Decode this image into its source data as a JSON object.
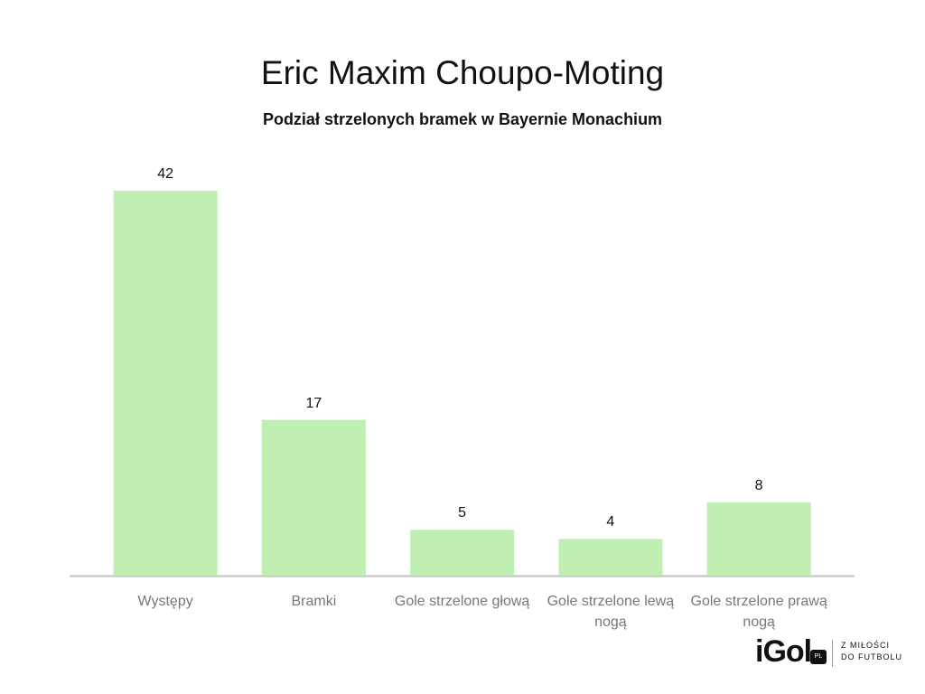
{
  "chart_data": {
    "type": "bar",
    "title": "Eric Maxim Choupo-Moting",
    "subtitle": "Podział strzelonych bramek w Bayernie Monachium",
    "categories": [
      "Występy",
      "Bramki",
      "Gole strzelone głową",
      "Gole strzelone lewą nogą",
      "Gole strzelone prawą nogą"
    ],
    "values": [
      42,
      17,
      5,
      4,
      8
    ],
    "color": "#bfefb2"
  },
  "logo": {
    "name": "iGol",
    "badge": "PL",
    "tagline_1": "Z MIŁOŚCI",
    "tagline_2": "DO FUTBOLU"
  }
}
